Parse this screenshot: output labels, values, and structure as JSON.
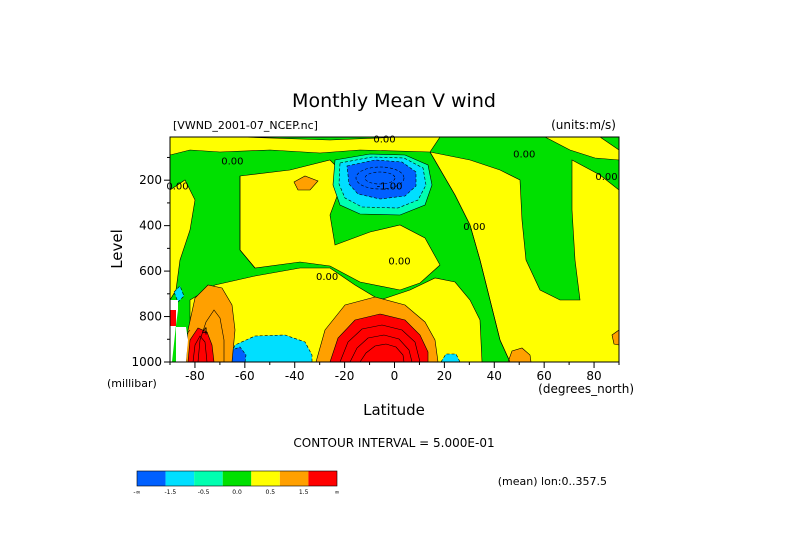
{
  "chart_data": {
    "type": "heatmap",
    "title": "Monthly Mean V wind",
    "dataset_label": "[VWND_2001-07_NCEP.nc]",
    "units_label": "(units:m/s)",
    "xlabel": "Latitude",
    "ylabel": "Level",
    "x_unit_label": "(degrees_north)",
    "y_unit_label": "(millibar)",
    "xlim": [
      -90,
      90
    ],
    "ylim": [
      1000,
      10
    ],
    "y_inverted": true,
    "x_ticks": [
      {
        "value": -80,
        "label": "-80"
      },
      {
        "value": -60,
        "label": "-60"
      },
      {
        "value": -40,
        "label": "-40"
      },
      {
        "value": -20,
        "label": "-20"
      },
      {
        "value": 0,
        "label": "0"
      },
      {
        "value": 20,
        "label": "20"
      },
      {
        "value": 40,
        "label": "40"
      },
      {
        "value": 60,
        "label": "60"
      },
      {
        "value": 80,
        "label": "80"
      }
    ],
    "y_ticks": [
      {
        "value": 200,
        "label": "200"
      },
      {
        "value": 400,
        "label": "400"
      },
      {
        "value": 600,
        "label": "600"
      },
      {
        "value": 800,
        "label": "800"
      },
      {
        "value": 1000,
        "label": "1000"
      }
    ],
    "contour_interval_text": "CONTOUR INTERVAL = 5.000E-01",
    "footer_note": "(mean) lon:0..357.5",
    "contour_labels": [
      {
        "text": "0.00",
        "lat": -4,
        "lev": 35
      },
      {
        "text": "0.00",
        "lat": -65,
        "lev": 130
      },
      {
        "text": "0.00",
        "lat": -87,
        "lev": 240
      },
      {
        "text": "0.00",
        "lat": 52,
        "lev": 100
      },
      {
        "text": "0.00",
        "lat": 85,
        "lev": 200
      },
      {
        "text": "-1.00",
        "lat": -2,
        "lev": 240
      },
      {
        "text": "0.00",
        "lat": 32,
        "lev": 420
      },
      {
        "text": "0.00",
        "lat": 2,
        "lev": 570
      },
      {
        "text": "0.00",
        "lat": -27,
        "lev": 640
      },
      {
        "text": "4",
        "lat": -76,
        "lev": 880
      }
    ],
    "colorbar": {
      "colors": [
        "#0060ff",
        "#00dfff",
        "#00ffb0",
        "#00e000",
        "#ffff00",
        "#ffa000",
        "#ff0000"
      ],
      "labels": [
        "-∞",
        "-1.5",
        "-0.5",
        "0.0",
        "0.5",
        "1.5",
        "∞"
      ]
    },
    "regions": [
      {
        "name": "green-background",
        "color": "#00e000"
      },
      {
        "name": "yellow-region",
        "color": "#ffff00"
      },
      {
        "name": "blue-jet",
        "color": "#0060ff"
      },
      {
        "name": "orange-band",
        "color": "#ffa000"
      },
      {
        "name": "red-core",
        "color": "#ff0000"
      },
      {
        "name": "cyan-band",
        "color": "#00ffff"
      },
      {
        "name": "missing-data",
        "color": "#ffffff"
      }
    ]
  }
}
